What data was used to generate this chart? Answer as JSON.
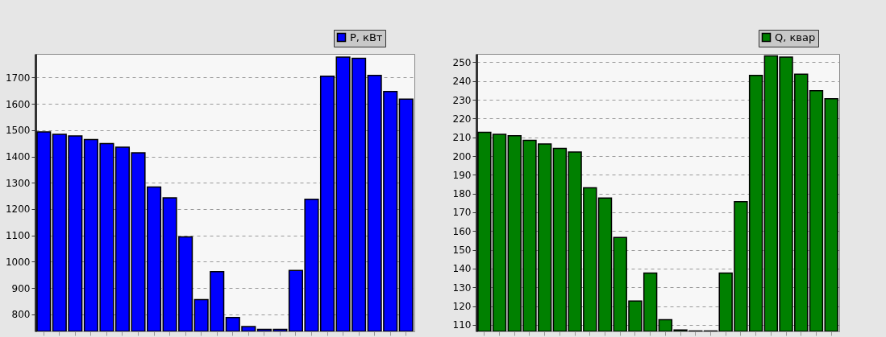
{
  "chart_data": [
    {
      "type": "bar",
      "categories": [
        null,
        null,
        null,
        null,
        null,
        null,
        null,
        null,
        null,
        null,
        null,
        null,
        null,
        null,
        null,
        null,
        null,
        null,
        null,
        null,
        null,
        null,
        null,
        null
      ],
      "series": [
        {
          "name": "P, кВт",
          "color": "#0000ff",
          "values": [
            1493,
            1484,
            1478,
            1464,
            1449,
            1435,
            1414,
            1284,
            1243,
            1094,
            856,
            962,
            788,
            753,
            743,
            743,
            967,
            1237,
            1705,
            1778,
            1773,
            1708,
            1647,
            1618
          ]
        }
      ],
      "ylim": [
        735,
        1790
      ],
      "yticks": [
        800,
        900,
        1000,
        1100,
        1200,
        1300,
        1400,
        1500,
        1600,
        1700
      ],
      "grid": "y",
      "legend": "top right",
      "tick_labels": "y"
    },
    {
      "type": "bar",
      "categories": [
        null,
        null,
        null,
        null,
        null,
        null,
        null,
        null,
        null,
        null,
        null,
        null,
        null,
        null,
        null,
        null,
        null,
        null,
        null,
        null,
        null,
        null,
        null,
        null
      ],
      "series": [
        {
          "name": "Q, квар",
          "color": "#008000",
          "values": [
            212.7,
            211.6,
            210.8,
            208.4,
            206.5,
            204.1,
            202.2,
            183.1,
            177.6,
            156.6,
            122.7,
            137.6,
            112.7,
            107.3,
            106.7,
            106.7,
            137.6,
            175.7,
            243.0,
            253.4,
            252.8,
            243.7,
            234.9,
            230.6
          ]
        }
      ],
      "ylim": [
        106.5,
        254.5
      ],
      "yticks": [
        110,
        120,
        130,
        140,
        150,
        160,
        170,
        180,
        190,
        200,
        210,
        220,
        230,
        240,
        250
      ],
      "grid": "y",
      "legend": "top right",
      "tick_labels": "y"
    }
  ]
}
